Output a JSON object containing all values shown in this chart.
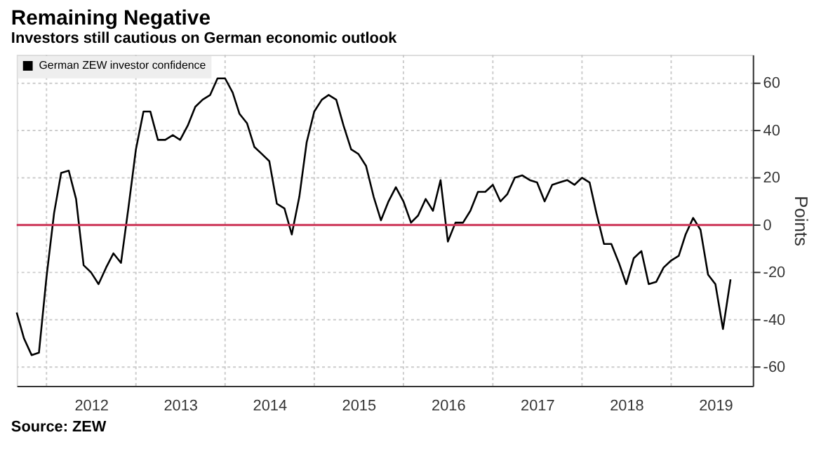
{
  "chart_data": {
    "type": "line",
    "title": "Remaining Negative",
    "subtitle": "Investors still cautious on German economic outlook",
    "ylabel": "Points",
    "annotations": [
      "Source: ZEW"
    ],
    "x": [
      "2011-09",
      "2011-10",
      "2011-11",
      "2011-12",
      "2012-01",
      "2012-02",
      "2012-03",
      "2012-04",
      "2012-05",
      "2012-06",
      "2012-07",
      "2012-08",
      "2012-09",
      "2012-10",
      "2012-11",
      "2012-12",
      "2013-01",
      "2013-02",
      "2013-03",
      "2013-04",
      "2013-05",
      "2013-06",
      "2013-07",
      "2013-08",
      "2013-09",
      "2013-10",
      "2013-11",
      "2013-12",
      "2014-01",
      "2014-02",
      "2014-03",
      "2014-04",
      "2014-05",
      "2014-06",
      "2014-07",
      "2014-08",
      "2014-09",
      "2014-10",
      "2014-11",
      "2014-12",
      "2015-01",
      "2015-02",
      "2015-03",
      "2015-04",
      "2015-05",
      "2015-06",
      "2015-07",
      "2015-08",
      "2015-09",
      "2015-10",
      "2015-11",
      "2015-12",
      "2016-01",
      "2016-02",
      "2016-03",
      "2016-04",
      "2016-05",
      "2016-06",
      "2016-07",
      "2016-08",
      "2016-09",
      "2016-10",
      "2016-11",
      "2016-12",
      "2017-01",
      "2017-02",
      "2017-03",
      "2017-04",
      "2017-05",
      "2017-06",
      "2017-07",
      "2017-08",
      "2017-09",
      "2017-10",
      "2017-11",
      "2017-12",
      "2018-01",
      "2018-02",
      "2018-03",
      "2018-04",
      "2018-05",
      "2018-06",
      "2018-07",
      "2018-08",
      "2018-09",
      "2018-10",
      "2018-11",
      "2018-12",
      "2019-01",
      "2019-02",
      "2019-03",
      "2019-04",
      "2019-05",
      "2019-06",
      "2019-07",
      "2019-08",
      "2019-09"
    ],
    "series": [
      {
        "name": "German ZEW investor confidence",
        "color": "#000000",
        "values": [
          -37,
          -48,
          -55,
          -54,
          -22,
          5,
          22,
          23,
          11,
          -17,
          -20,
          -25,
          -18,
          -12,
          -16,
          7,
          32,
          48,
          48,
          36,
          36,
          38,
          36,
          42,
          50,
          53,
          55,
          62,
          62,
          56,
          47,
          43,
          33,
          30,
          27,
          9,
          7,
          -4,
          12,
          35,
          48,
          53,
          55,
          53,
          42,
          32,
          30,
          25,
          12,
          2,
          10,
          16,
          10,
          1,
          4,
          11,
          6,
          19,
          -7,
          1,
          1,
          6,
          14,
          14,
          17,
          10,
          13,
          20,
          21,
          19,
          18,
          10,
          17,
          18,
          19,
          17,
          20,
          18,
          5,
          -8,
          -8,
          -16,
          -25,
          -14,
          -11,
          -25,
          -24,
          -18,
          -15,
          -13,
          -4,
          3,
          -2,
          -21,
          -25,
          -44,
          -23
        ]
      }
    ],
    "ylim": [
      -68,
      72
    ],
    "yticks": [
      -60,
      -40,
      -20,
      0,
      20,
      40,
      60
    ],
    "xlim": [
      "2011-09",
      "2019-12"
    ],
    "xticks": [
      {
        "value": "2012-01",
        "label": null
      },
      {
        "value": "2012-07",
        "label": "2012"
      },
      {
        "value": "2013-01",
        "label": null
      },
      {
        "value": "2013-07",
        "label": "2013"
      },
      {
        "value": "2014-01",
        "label": null
      },
      {
        "value": "2014-07",
        "label": "2014"
      },
      {
        "value": "2015-01",
        "label": null
      },
      {
        "value": "2015-07",
        "label": "2015"
      },
      {
        "value": "2016-01",
        "label": null
      },
      {
        "value": "2016-07",
        "label": "2016"
      },
      {
        "value": "2017-01",
        "label": null
      },
      {
        "value": "2017-07",
        "label": "2017"
      },
      {
        "value": "2018-01",
        "label": null
      },
      {
        "value": "2018-07",
        "label": "2018"
      },
      {
        "value": "2019-01",
        "label": null
      },
      {
        "value": "2019-07",
        "label": "2019"
      }
    ],
    "ref_lines": [
      {
        "axis": "y",
        "value": 0,
        "color": "#cc3355"
      }
    ],
    "grid": true,
    "legend": "top left",
    "line_style": "solid",
    "marker": "none"
  }
}
